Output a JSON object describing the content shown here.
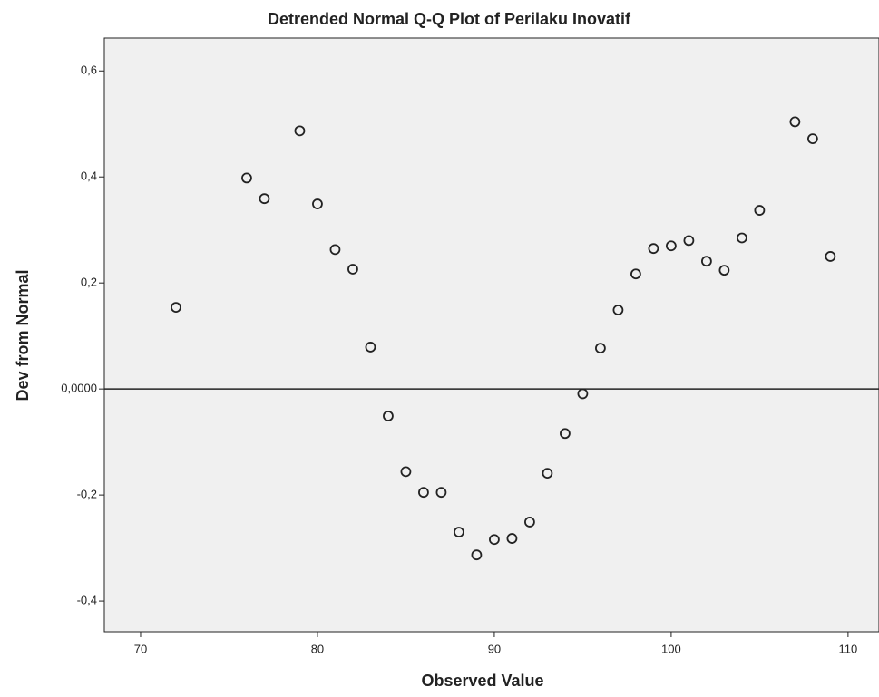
{
  "chart_data": {
    "type": "scatter",
    "title": "Detrended Normal Q-Q Plot of Perilaku Inovatif",
    "x_label": "Observed Value",
    "y_label": "Dev from Normal",
    "x": [
      72,
      76,
      77,
      79,
      80,
      81,
      82,
      83,
      84,
      85,
      86,
      87,
      88,
      89,
      90,
      91,
      92,
      93,
      94,
      95,
      96,
      97,
      98,
      99,
      100,
      101,
      102,
      103,
      104,
      105,
      107,
      108,
      109
    ],
    "values": [
      0.154,
      0.398,
      0.359,
      0.487,
      0.349,
      0.263,
      0.226,
      0.079,
      -0.051,
      -0.156,
      -0.195,
      -0.195,
      -0.27,
      -0.313,
      -0.284,
      -0.282,
      -0.251,
      -0.159,
      -0.084,
      -0.009,
      0.077,
      0.149,
      0.217,
      0.265,
      0.27,
      0.28,
      0.241,
      0.224,
      0.285,
      0.337,
      0.504,
      0.472,
      0.25
    ],
    "color": "#222222",
    "xlim": [
      67.95,
      111.75
    ],
    "ylim": [
      -0.458,
      0.662
    ],
    "xticks": [
      70,
      80,
      90,
      100,
      110
    ],
    "yticks": [
      {
        "value": 0.6,
        "label": "0,6"
      },
      {
        "value": 0.4,
        "label": "0,4"
      },
      {
        "value": 0.2,
        "label": "0,2"
      },
      {
        "value": 0,
        "label": "0,0000"
      },
      {
        "value": -0.2,
        "label": "-0,2"
      },
      {
        "value": -0.4,
        "label": "-0,4"
      }
    ],
    "reference_line": 0,
    "background": "#f0f0f0"
  }
}
